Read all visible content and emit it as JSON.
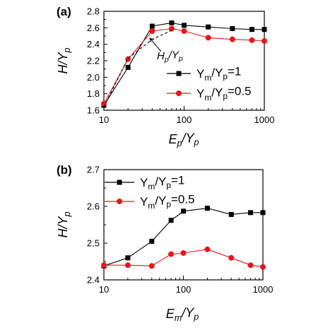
{
  "colors": {
    "black_series": "#000000",
    "red_series": "#e8161b"
  },
  "chart_data": [
    {
      "type": "line",
      "panel_label": "(a)",
      "xscale": "log",
      "xlim": [
        10,
        1000
      ],
      "ylim": [
        1.6,
        2.8
      ],
      "xticks": [
        10,
        100,
        1000
      ],
      "xtick_labels": [
        "10",
        "100",
        "1000"
      ],
      "yticks": [
        1.6,
        1.8,
        2.0,
        2.2,
        2.4,
        2.6,
        2.8
      ],
      "ytick_labels": [
        "1.6",
        "1.8",
        "2.0",
        "2.2",
        "2.4",
        "2.6",
        "2.8"
      ],
      "xlabel": {
        "main": "E",
        "sub": "p",
        "slash": "/Y",
        "sub2": "p"
      },
      "ylabel": {
        "main": "H/Y",
        "sub": "p"
      },
      "legend_position": "lower-right",
      "annotation": {
        "main": "H",
        "sub": "p",
        "slash": "/Y",
        "sub2": "p"
      },
      "series": [
        {
          "name": "Y_m/Y_p=1",
          "legend": {
            "main": "Y",
            "sub": "m",
            "slash": "/Y",
            "sub2": "p",
            "rest": "=1"
          },
          "color": "#000000",
          "marker": "square",
          "x": [
            10,
            20,
            40,
            70,
            100,
            200,
            400,
            700,
            1000
          ],
          "y": [
            1.66,
            2.12,
            2.62,
            2.66,
            2.63,
            2.61,
            2.59,
            2.58,
            2.58
          ]
        },
        {
          "name": "Y_m/Y_p=0.5",
          "legend": {
            "main": "Y",
            "sub": "m",
            "slash": "/Y",
            "sub2": "p",
            "rest": "=0.5"
          },
          "color": "#e8161b",
          "marker": "circle",
          "x": [
            10,
            20,
            40,
            70,
            100,
            200,
            400,
            700,
            1000
          ],
          "y": [
            1.68,
            2.22,
            2.56,
            2.59,
            2.56,
            2.48,
            2.46,
            2.45,
            2.44
          ]
        },
        {
          "name": "H_p/Y_p",
          "color": "#000000",
          "marker": "none",
          "dashed": true,
          "x": [
            10,
            20,
            40,
            70
          ],
          "y": [
            1.64,
            2.23,
            2.46,
            2.57
          ]
        }
      ]
    },
    {
      "type": "line",
      "panel_label": "(b)",
      "xscale": "log",
      "xlim": [
        10,
        1000
      ],
      "ylim": [
        2.4,
        2.7
      ],
      "xticks": [
        10,
        100,
        1000
      ],
      "xtick_labels": [
        "10",
        "100",
        "1000"
      ],
      "yticks": [
        2.4,
        2.5,
        2.6,
        2.7
      ],
      "ytick_labels": [
        "2.4",
        "2.5",
        "2.6",
        "2.7"
      ],
      "xlabel": {
        "main": "E",
        "sub": "m",
        "slash": "/Y",
        "sub2": "p"
      },
      "ylabel": {
        "main": "H/Y",
        "sub": "p"
      },
      "legend_position": "top-left",
      "series": [
        {
          "name": "Y_m/Y_p=1",
          "legend": {
            "main": "Y",
            "sub": "m",
            "slash": "/Y",
            "sub2": "p",
            "rest": "=1"
          },
          "color": "#000000",
          "marker": "square",
          "x": [
            10,
            20,
            40,
            70,
            100,
            200,
            400,
            700,
            1000
          ],
          "y": [
            2.438,
            2.46,
            2.505,
            2.562,
            2.587,
            2.595,
            2.578,
            2.583,
            2.583
          ]
        },
        {
          "name": "Y_m/Y_p=0.5",
          "legend": {
            "main": "Y",
            "sub": "m",
            "slash": "/Y",
            "sub2": "p",
            "rest": "=0.5"
          },
          "color": "#e8161b",
          "marker": "circle",
          "x": [
            10,
            20,
            40,
            70,
            100,
            200,
            400,
            700,
            1000
          ],
          "y": [
            2.44,
            2.44,
            2.438,
            2.47,
            2.473,
            2.483,
            2.46,
            2.44,
            2.435
          ]
        }
      ]
    }
  ]
}
